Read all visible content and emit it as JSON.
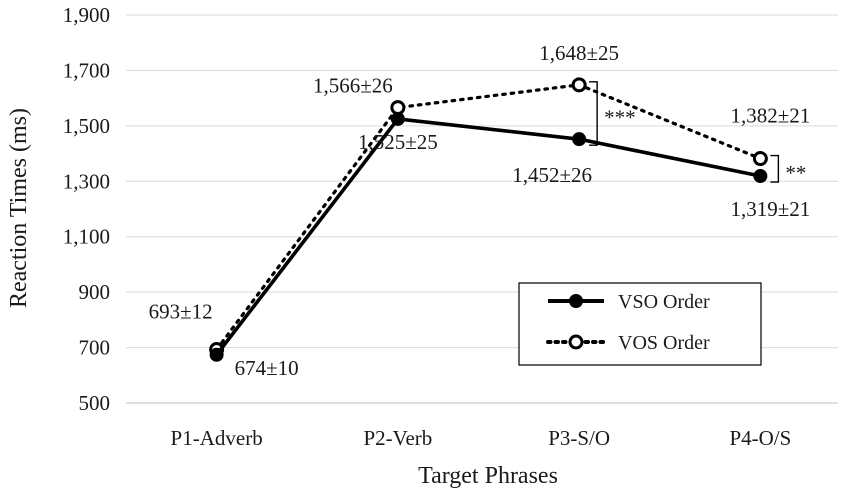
{
  "chart_data": {
    "type": "line",
    "xlabel": "Target Phrases",
    "ylabel": "Reaction Times (ms)",
    "categories": [
      "P1-Adverb",
      "P2-Verb",
      "P3-S/O",
      "P4-O/S"
    ],
    "ylim": [
      500,
      1900
    ],
    "yticks": [
      500,
      700,
      900,
      1100,
      1300,
      1500,
      1700,
      1900
    ],
    "ytick_labels": [
      "500",
      "700",
      "900",
      "1,100",
      "1,300",
      "1,500",
      "1,700",
      "1,900"
    ],
    "grid": "horizontal",
    "legend_position": "lower-right",
    "series": [
      {
        "name": "VSO Order",
        "style": "solid",
        "marker": "filled-circle",
        "color": "#000000",
        "values": [
          674,
          1525,
          1452,
          1319
        ],
        "labels": [
          "674±10",
          "1,525±25",
          "1,452±26",
          "1,319±21"
        ]
      },
      {
        "name": "VOS Order",
        "style": "dotted",
        "marker": "open-circle",
        "color": "#000000",
        "values": [
          693,
          1566,
          1648,
          1382
        ],
        "labels": [
          "693±12",
          "1,566±26",
          "1,648±25",
          "1,382±21"
        ]
      }
    ],
    "significance": [
      {
        "category_index": 2,
        "label": "***"
      },
      {
        "category_index": 3,
        "label": "**"
      }
    ]
  }
}
